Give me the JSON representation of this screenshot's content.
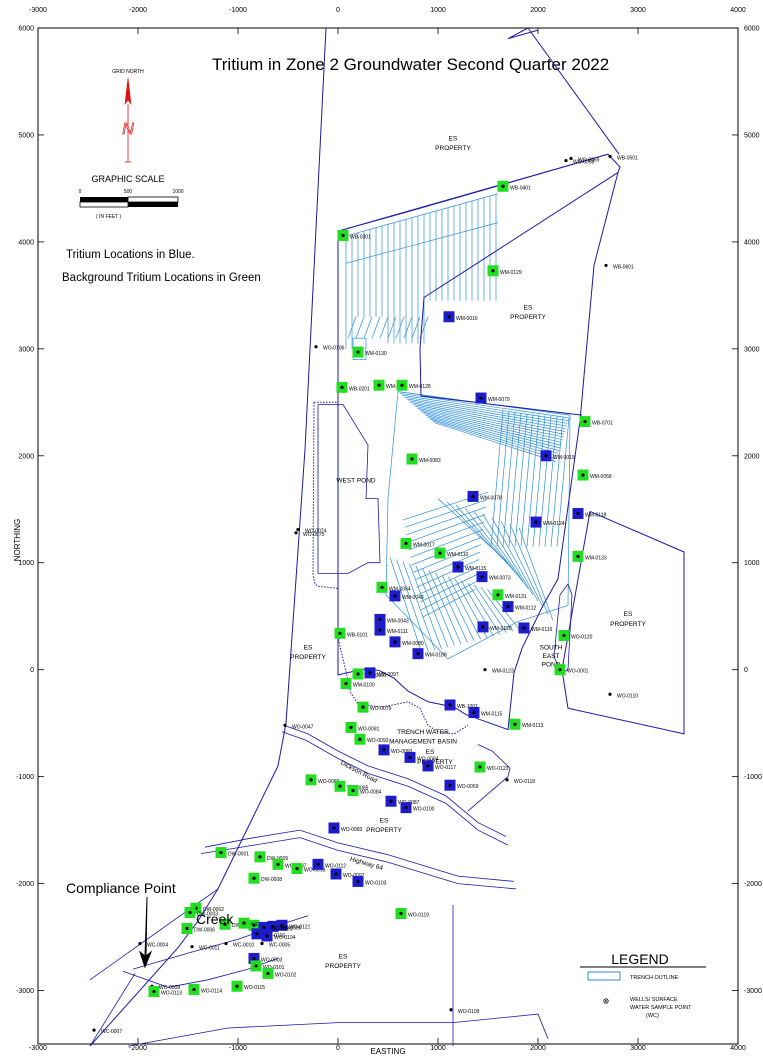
{
  "title": "Tritium in Zone 2 Groundwater Second Quarter 2022",
  "notes": [
    "Tritium Locations in Blue.",
    "Background Tritium Locations in Green"
  ],
  "north_arrow": {
    "label": "GRID NORTH",
    "letter": "N"
  },
  "graphic_scale": {
    "title": "GRAPHIC SCALE",
    "ticks": [
      "0",
      "500",
      "1000"
    ],
    "unit": "( IN FEET )"
  },
  "axes": {
    "xlabel": "EASTING",
    "ylabel": "NORTHING",
    "x_ticks": [
      "-3000",
      "-2000",
      "-1000",
      "0",
      "1000",
      "2000",
      "3000",
      "4000"
    ],
    "y_ticks": [
      "6000",
      "5000",
      "4000",
      "3000",
      "2000",
      "1000",
      "0",
      "-1000",
      "-2000",
      "-3000"
    ],
    "x_range": [
      -3000,
      4000
    ],
    "y_range": [
      -3500,
      6000
    ]
  },
  "colors": {
    "tritium": "#1c1ccc",
    "background": "#22dd22",
    "boundary": "#1a1aa8",
    "trench": "#2f8fd8"
  },
  "compliance_point": "Compliance Point",
  "creek": "Creek",
  "legend": {
    "title": "LEGEND",
    "items": [
      "TRENCH OUTLINE",
      "WELLS/ SURFACE",
      "WATER SAMPLE POINT",
      "(WC)"
    ]
  },
  "zone_labels": [
    {
      "text": "ES",
      "x": 1150,
      "y": 4950
    },
    {
      "text": "PROPERTY",
      "x": 1150,
      "y": 4860
    },
    {
      "text": "ES",
      "x": 1900,
      "y": 3370
    },
    {
      "text": "PROPERTY",
      "x": 1900,
      "y": 3280
    },
    {
      "text": "WEST POND",
      "x": 180,
      "y": 1750
    },
    {
      "text": "ES",
      "x": -300,
      "y": 190
    },
    {
      "text": "PROPERTY",
      "x": -300,
      "y": 100
    },
    {
      "text": "ES",
      "x": 2900,
      "y": 500
    },
    {
      "text": "PROPERTY",
      "x": 2900,
      "y": 410
    },
    {
      "text": "SOUTH",
      "x": 2130,
      "y": 190
    },
    {
      "text": "EAST",
      "x": 2130,
      "y": 110
    },
    {
      "text": "POND",
      "x": 2130,
      "y": 30
    },
    {
      "text": "TRENCH WATER",
      "x": 850,
      "y": -600
    },
    {
      "text": "MANAGEMENT BASIN",
      "x": 850,
      "y": -690
    },
    {
      "text": "ES",
      "x": 920,
      "y": -790
    },
    {
      "text": "PROPERTY",
      "x": 970,
      "y": -880
    },
    {
      "text": "ES",
      "x": 460,
      "y": -1430
    },
    {
      "text": "PROPERTY",
      "x": 460,
      "y": -1520
    },
    {
      "text": "ES",
      "x": 50,
      "y": -2700
    },
    {
      "text": "PROPERTY",
      "x": 50,
      "y": -2790
    },
    {
      "text": "Highway 64",
      "x": 280,
      "y": -1830
    },
    {
      "text": "Dickson Road",
      "x": 200,
      "y": -970
    }
  ],
  "wells": [
    {
      "name": "WB-0301",
      "x": 50,
      "y": 4060,
      "c": "g"
    },
    {
      "name": "WB-0401",
      "x": 1650,
      "y": 4520,
      "c": "g"
    },
    {
      "name": "WO-0068",
      "x": 2280,
      "y": 4760,
      "c": "n"
    },
    {
      "name": "WO-0069",
      "x": 2330,
      "y": 4780,
      "c": "n"
    },
    {
      "name": "WB-0501",
      "x": 2720,
      "y": 4800,
      "c": "n"
    },
    {
      "name": "WB-0601",
      "x": 2680,
      "y": 3780,
      "c": "n"
    },
    {
      "name": "WM-0129",
      "x": 1550,
      "y": 3730,
      "c": "g"
    },
    {
      "name": "WM-0016",
      "x": 1110,
      "y": 3300,
      "c": "b"
    },
    {
      "name": "WM-0130",
      "x": 200,
      "y": 2970,
      "c": "g"
    },
    {
      "name": "WO-0106",
      "x": -220,
      "y": 3020,
      "c": "n"
    },
    {
      "name": "WB-0201",
      "x": 40,
      "y": 2640,
      "c": "g"
    },
    {
      "name": "WM-0125",
      "x": 410,
      "y": 2660,
      "c": "g"
    },
    {
      "name": "WM-0128",
      "x": 640,
      "y": 2660,
      "c": "g"
    },
    {
      "name": "WM-0079",
      "x": 1430,
      "y": 2540,
      "c": "b"
    },
    {
      "name": "WB-0701",
      "x": 2470,
      "y": 2320,
      "c": "g"
    },
    {
      "name": "WM-0019",
      "x": 2080,
      "y": 2000,
      "c": "b"
    },
    {
      "name": "WM-0058",
      "x": 2450,
      "y": 1820,
      "c": "g"
    },
    {
      "name": "WM-0083",
      "x": 740,
      "y": 1970,
      "c": "g"
    },
    {
      "name": "WM-0078",
      "x": 1350,
      "y": 1620,
      "c": "b"
    },
    {
      "name": "WM-0118",
      "x": 2400,
      "y": 1460,
      "c": "b"
    },
    {
      "name": "WM-0124",
      "x": 1980,
      "y": 1380,
      "c": "b"
    },
    {
      "name": "WM-0133",
      "x": 2400,
      "y": 1060,
      "c": "g"
    },
    {
      "name": "WO-0074",
      "x": -400,
      "y": 1310,
      "c": "n"
    },
    {
      "name": "WO-0075",
      "x": -420,
      "y": 1280,
      "c": "n"
    },
    {
      "name": "WM-0017",
      "x": 680,
      "y": 1180,
      "c": "g"
    },
    {
      "name": "WM-0110",
      "x": 1020,
      "y": 1090,
      "c": "g"
    },
    {
      "name": "WM-0115",
      "x": 1200,
      "y": 960,
      "c": "b"
    },
    {
      "name": "WM-0073",
      "x": 1440,
      "y": 870,
      "c": "b"
    },
    {
      "name": "WM-0064",
      "x": 440,
      "y": 770,
      "c": "g"
    },
    {
      "name": "WM-0048",
      "x": 570,
      "y": 690,
      "c": "b"
    },
    {
      "name": "WM-0131",
      "x": 1600,
      "y": 700,
      "c": "g"
    },
    {
      "name": "WM-0112",
      "x": 1700,
      "y": 590,
      "c": "b"
    },
    {
      "name": "WM-0043",
      "x": 420,
      "y": 470,
      "c": "b"
    },
    {
      "name": "WM-0111",
      "x": 420,
      "y": 370,
      "c": "b"
    },
    {
      "name": "WM-0120",
      "x": 1450,
      "y": 400,
      "c": "b"
    },
    {
      "name": "WM-0116",
      "x": 1860,
      "y": 390,
      "c": "b"
    },
    {
      "name": "WO-0120",
      "x": 2260,
      "y": 320,
      "c": "g"
    },
    {
      "name": "WB-0101",
      "x": 20,
      "y": 340,
      "c": "g"
    },
    {
      "name": "WM-0080",
      "x": 570,
      "y": 260,
      "c": "b"
    },
    {
      "name": "WM-0109",
      "x": 800,
      "y": 150,
      "c": "b"
    },
    {
      "name": "WM-0101",
      "x": 200,
      "y": -40,
      "c": "g"
    },
    {
      "name": "WM-0097",
      "x": 320,
      "y": -30,
      "c": "b"
    },
    {
      "name": "WM-0123",
      "x": 1470,
      "y": 0,
      "c": "n"
    },
    {
      "name": "WO-0001",
      "x": 2220,
      "y": 0,
      "c": "g"
    },
    {
      "name": "WO-0110",
      "x": 2720,
      "y": -230,
      "c": "n"
    },
    {
      "name": "WM-0100",
      "x": 80,
      "y": -130,
      "c": "g"
    },
    {
      "name": "WO-0079",
      "x": 250,
      "y": -350,
      "c": "g"
    },
    {
      "name": "WB-1001",
      "x": 1120,
      "y": -330,
      "c": "b"
    },
    {
      "name": "WM-0115",
      "x": 1360,
      "y": -400,
      "c": "b"
    },
    {
      "name": "WM-0113",
      "x": 1770,
      "y": -510,
      "c": "g"
    },
    {
      "name": "WO-0047",
      "x": -530,
      "y": -520,
      "c": "n"
    },
    {
      "name": "WO-0081",
      "x": 130,
      "y": -540,
      "c": "g"
    },
    {
      "name": "WO-0092",
      "x": 220,
      "y": -650,
      "c": "g"
    },
    {
      "name": "WO-0093",
      "x": 460,
      "y": -750,
      "c": "b"
    },
    {
      "name": "WO-0094",
      "x": 720,
      "y": -820,
      "c": "b"
    },
    {
      "name": "WO-0117",
      "x": 900,
      "y": -900,
      "c": "b"
    },
    {
      "name": "WO-0123",
      "x": 1420,
      "y": -910,
      "c": "g"
    },
    {
      "name": "WO-0118",
      "x": 1690,
      "y": -1030,
      "c": "n"
    },
    {
      "name": "WO-0059",
      "x": 1120,
      "y": -1080,
      "c": "b"
    },
    {
      "name": "WO-0086",
      "x": -270,
      "y": -1030,
      "c": "g"
    },
    {
      "name": "WO-0085",
      "x": 20,
      "y": -1090,
      "c": "g"
    },
    {
      "name": "WO-0084",
      "x": 150,
      "y": -1130,
      "c": "g"
    },
    {
      "name": "WO-0087",
      "x": 530,
      "y": -1230,
      "c": "b"
    },
    {
      "name": "WO-0100",
      "x": 680,
      "y": -1290,
      "c": "b"
    },
    {
      "name": "WO-0083",
      "x": -40,
      "y": -1480,
      "c": "b"
    },
    {
      "name": "DW-0001",
      "x": -1170,
      "y": -1710,
      "c": "g"
    },
    {
      "name": "DW-0009",
      "x": -780,
      "y": -1750,
      "c": "g"
    },
    {
      "name": "WO-0007",
      "x": -600,
      "y": -1820,
      "c": "g"
    },
    {
      "name": "WO-0098",
      "x": -410,
      "y": -1860,
      "c": "g"
    },
    {
      "name": "WO-0112",
      "x": -200,
      "y": -1820,
      "c": "b"
    },
    {
      "name": "DW-0008",
      "x": -840,
      "y": -1950,
      "c": "g"
    },
    {
      "name": "WO-0097",
      "x": -20,
      "y": -1910,
      "c": "b"
    },
    {
      "name": "WO-0103",
      "x": 200,
      "y": -1980,
      "c": "b"
    },
    {
      "name": "DW-0002",
      "x": -1420,
      "y": -2230,
      "c": "g"
    },
    {
      "name": "DW-0003",
      "x": -1480,
      "y": -2270,
      "c": "g"
    },
    {
      "name": "WO-0119",
      "x": 630,
      "y": -2280,
      "c": "g"
    },
    {
      "name": "DW-0005",
      "x": -1130,
      "y": -2380,
      "c": "g"
    },
    {
      "name": "WO-0089",
      "x": -840,
      "y": -2390,
      "c": "g"
    },
    {
      "name": "WO-0066",
      "x": -940,
      "y": -2370,
      "c": "g"
    },
    {
      "name": "DW-0006",
      "x": -1510,
      "y": -2420,
      "c": "g"
    },
    {
      "name": "WO-0121",
      "x": -560,
      "y": -2390,
      "c": "b"
    },
    {
      "name": "WO-0090",
      "x": -650,
      "y": -2400,
      "c": "b"
    },
    {
      "name": "WO-0091",
      "x": -740,
      "y": -2410,
      "c": "b"
    },
    {
      "name": "WO-0116",
      "x": -810,
      "y": -2470,
      "c": "b"
    },
    {
      "name": "WO-0104",
      "x": -710,
      "y": -2490,
      "c": "b"
    },
    {
      "name": "WC-0004",
      "x": -1980,
      "y": -2560,
      "c": "n"
    },
    {
      "name": "WC-0011",
      "x": -1460,
      "y": -2590,
      "c": "n"
    },
    {
      "name": "WC-0010",
      "x": -1120,
      "y": -2560,
      "c": "n"
    },
    {
      "name": "WO-0003",
      "x": -840,
      "y": -2700,
      "c": "b"
    },
    {
      "name": "WC-0005",
      "x": -760,
      "y": -2560,
      "c": "n"
    },
    {
      "name": "WO-0101",
      "x": -820,
      "y": -2770,
      "c": "g"
    },
    {
      "name": "WO-0102",
      "x": -700,
      "y": -2840,
      "c": "g"
    },
    {
      "name": "WC-0008",
      "x": -1860,
      "y": -2960,
      "c": "n"
    },
    {
      "name": "WO-0113",
      "x": -1840,
      "y": -3010,
      "c": "g"
    },
    {
      "name": "WO-0114",
      "x": -1440,
      "y": -2990,
      "c": "g"
    },
    {
      "name": "WO-0115",
      "x": -1010,
      "y": -2960,
      "c": "g"
    },
    {
      "name": "WO-0109",
      "x": 1130,
      "y": -3180,
      "c": "n"
    },
    {
      "name": "WC-0007",
      "x": -2440,
      "y": -3370,
      "c": "n"
    }
  ]
}
